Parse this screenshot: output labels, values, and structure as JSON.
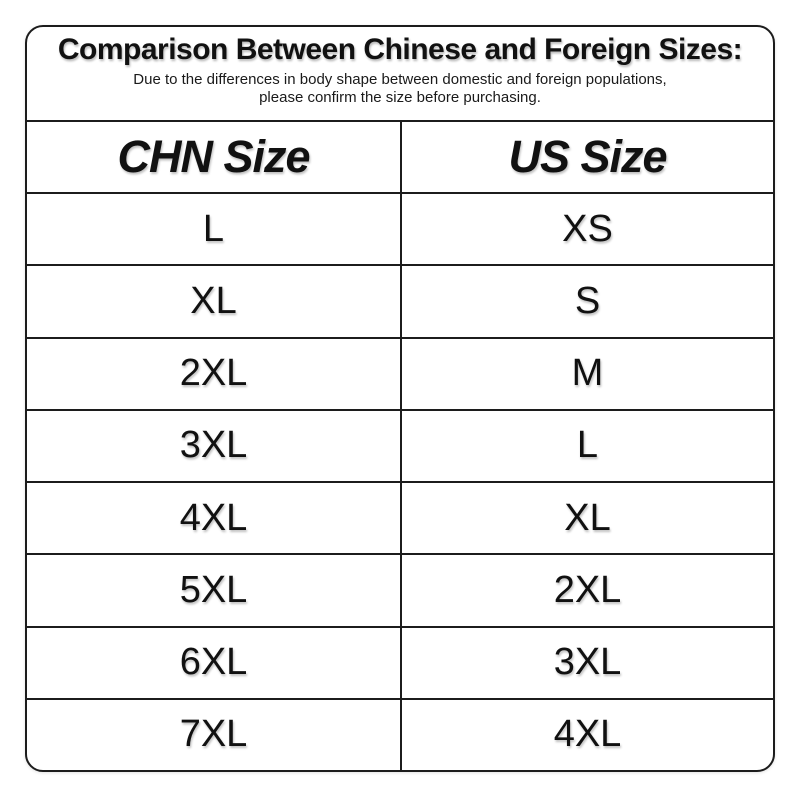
{
  "title": "Comparison Between Chinese and Foreign Sizes:",
  "subtitle": {
    "line1": "Due to the differences in body shape between domestic and foreign populations,",
    "line2": "please confirm the size before purchasing."
  },
  "table": {
    "headers": [
      "CHN Size",
      "US Size"
    ],
    "rows": [
      {
        "chn": "L",
        "us": "XS"
      },
      {
        "chn": "XL",
        "us": "S"
      },
      {
        "chn": "2XL",
        "us": "M"
      },
      {
        "chn": "3XL",
        "us": "L"
      },
      {
        "chn": "4XL",
        "us": "XL"
      },
      {
        "chn": "5XL",
        "us": "2XL"
      },
      {
        "chn": "6XL",
        "us": "3XL"
      },
      {
        "chn": "7XL",
        "us": "4XL"
      }
    ]
  },
  "colors": {
    "text": "#111111",
    "border": "#1c1c1c",
    "background": "#ffffff"
  }
}
